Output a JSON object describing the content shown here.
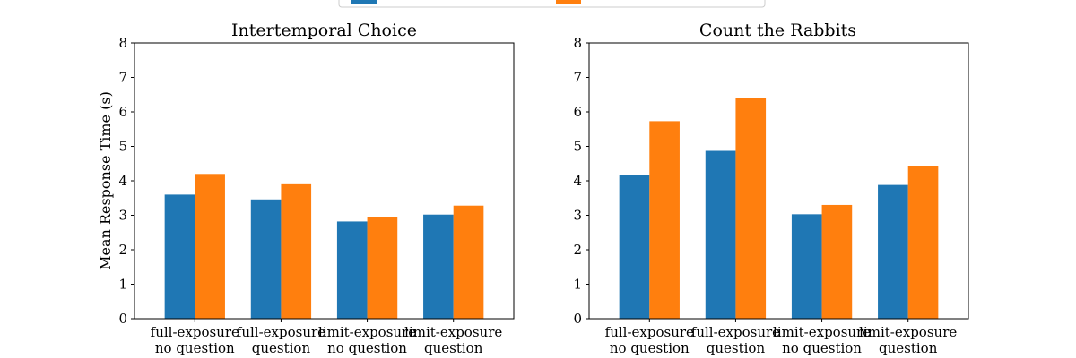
{
  "colors": {
    "series_a": "#1f77b4",
    "series_b": "#ff7f0e"
  },
  "legend": {
    "placement": "top-center",
    "entries": [
      "",
      ""
    ]
  },
  "chart_data": [
    {
      "type": "bar",
      "title": "Intertemporal Choice",
      "ylabel": "Mean Response Time (s)",
      "xlabel": "",
      "ylim": [
        0,
        8
      ],
      "yticks": [
        "0",
        "1",
        "2",
        "3",
        "4",
        "5",
        "6",
        "7",
        "8"
      ],
      "grid": false,
      "categories": [
        [
          "full-exposure",
          "no question"
        ],
        [
          "full-exposure",
          "question"
        ],
        [
          "limit-exposure",
          "no question"
        ],
        [
          "limit-exposure",
          "question"
        ]
      ],
      "series": [
        {
          "color": "#1f77b4",
          "values": [
            3.6,
            3.46,
            2.82,
            3.02
          ]
        },
        {
          "color": "#ff7f0e",
          "values": [
            4.2,
            3.9,
            2.94,
            3.28
          ]
        }
      ]
    },
    {
      "type": "bar",
      "title": "Count the Rabbits",
      "ylabel": "",
      "xlabel": "",
      "ylim": [
        0,
        8
      ],
      "yticks": [
        "0",
        "1",
        "2",
        "3",
        "4",
        "5",
        "6",
        "7",
        "8"
      ],
      "grid": false,
      "categories": [
        [
          "full-exposure",
          "no question"
        ],
        [
          "full-exposure",
          "question"
        ],
        [
          "limit-exposure",
          "no question"
        ],
        [
          "limit-exposure",
          "question"
        ]
      ],
      "series": [
        {
          "color": "#1f77b4",
          "values": [
            4.17,
            4.87,
            3.03,
            3.88
          ]
        },
        {
          "color": "#ff7f0e",
          "values": [
            5.73,
            6.4,
            3.3,
            4.43
          ]
        }
      ]
    }
  ]
}
